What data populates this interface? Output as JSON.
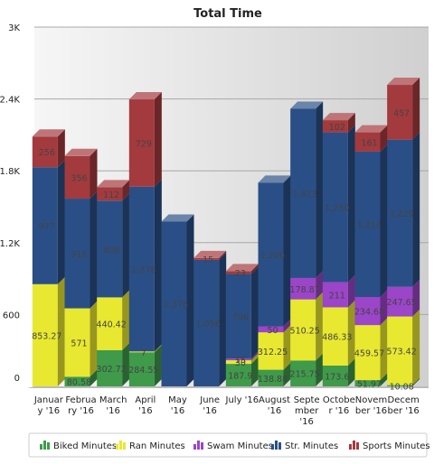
{
  "chart_data": {
    "type": "bar",
    "stacked": true,
    "three_d": true,
    "title": "Total Time",
    "ylim": [
      0,
      3000
    ],
    "yticks": [
      "0",
      "600",
      "1.2K",
      "1.8K",
      "2.4K",
      "3K"
    ],
    "ytick_values": [
      0,
      600,
      1200,
      1800,
      2400,
      3000
    ],
    "categories": [
      [
        "Januar",
        "y '16"
      ],
      [
        "Februa",
        "ry '16"
      ],
      [
        "March",
        "'16"
      ],
      [
        "April",
        "'16"
      ],
      [
        "May",
        "'16"
      ],
      [
        "June",
        "'16"
      ],
      [
        "July '16"
      ],
      [
        "August",
        "'16"
      ],
      [
        "Septe",
        "mber",
        "'16"
      ],
      [
        "Octobe",
        "r '16"
      ],
      [
        "Novem",
        "ber '16"
      ],
      [
        "Decem",
        "ber '16"
      ]
    ],
    "series": [
      {
        "name": "Biked Minutes",
        "color": "#3f9a4a",
        "values": [
          0,
          80.58,
          302.72,
          284.55,
          0,
          0,
          187.9,
          138.88,
          215.75,
          173.6,
          51.97,
          10.08
        ],
        "labels": [
          "",
          "80.58",
          "302.72",
          "284.55",
          "",
          "",
          "187.9",
          "138.88",
          "215.75",
          "173.6",
          "51.97",
          "10.08"
        ]
      },
      {
        "name": "Ran Minutes",
        "color": "#e8e830",
        "values": [
          853.27,
          571,
          440.42,
          7,
          0,
          0,
          30,
          312.25,
          510.25,
          486.33,
          459.57,
          573.42
        ],
        "labels": [
          "853.27",
          "571",
          "440.42",
          "7",
          "",
          "",
          "30",
          "312.25",
          "510.25",
          "486.33",
          "459.57",
          "573.42"
        ]
      },
      {
        "name": "Swam Minutes",
        "color": "#9b45c8",
        "values": [
          0,
          0,
          0,
          0,
          0,
          0,
          15,
          50,
          178.87,
          211,
          234.68,
          247.65
        ],
        "labels": [
          "",
          "",
          "",
          "",
          "",
          "",
          "15",
          "50",
          "178.87",
          "211",
          "234.68",
          "247.65"
        ]
      },
      {
        "name": "Str. Minutes",
        "color": "#2a4f86",
        "values": [
          977,
          916,
          808,
          1376,
          1376,
          1056,
          706,
          1200,
          1413,
          1250,
          1214,
          1229
        ],
        "labels": [
          "977",
          "916",
          "808",
          "1,376",
          "1,376",
          "1,056",
          "706",
          "1,200",
          "1,413",
          "1,250",
          "1,214",
          "1,229"
        ]
      },
      {
        "name": "Sports Minutes",
        "color": "#a33a3e",
        "values": [
          256,
          356,
          112,
          729,
          0,
          15,
          23,
          0,
          0,
          102,
          161,
          457
        ],
        "labels": [
          "256",
          "356",
          "112",
          "729",
          "",
          "15",
          "23",
          "",
          "",
          "102",
          "161",
          "457"
        ]
      }
    ],
    "legend_position": "bottom",
    "grid": true
  }
}
